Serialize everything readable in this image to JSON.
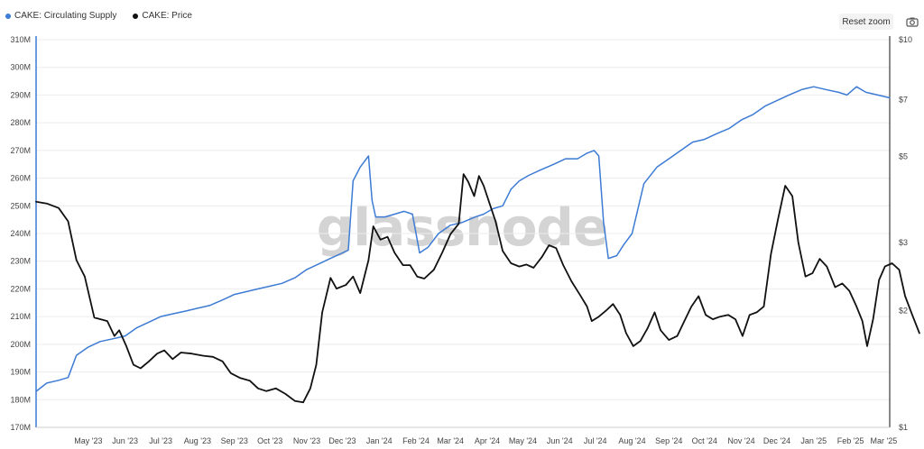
{
  "legend": [
    {
      "label": "CAKE: Circulating Supply",
      "color": "#3d7bd4"
    },
    {
      "label": "CAKE: Price",
      "color": "#111111"
    }
  ],
  "toolbar": {
    "reset_label": "Reset zoom",
    "camera_icon": "camera-icon"
  },
  "watermark": "glassnode",
  "chart_data": {
    "type": "line",
    "y_left": {
      "ticks": [
        "310M",
        "300M",
        "290M",
        "280M",
        "270M",
        "260M",
        "250M",
        "240M",
        "230M",
        "220M",
        "210M",
        "200M",
        "190M",
        "180M",
        "170M"
      ],
      "range": [
        170,
        310
      ],
      "unit": "M"
    },
    "y_right": {
      "ticks": [
        "$10",
        "$7",
        "$5",
        "$3",
        "$2",
        "$1"
      ],
      "scale": "log",
      "range": [
        1,
        10
      ]
    },
    "x_ticks": [
      "May '23",
      "Jun '23",
      "Jul '23",
      "Aug '23",
      "Sep '23",
      "Oct '23",
      "Nov '23",
      "Dec '23",
      "Jan '24",
      "Feb '24",
      "Mar '24",
      "Apr '24",
      "May '24",
      "Jun '24",
      "Jul '24",
      "Aug '24",
      "Sep '24",
      "Oct '24",
      "Nov '24",
      "Dec '24",
      "Jan '25",
      "Feb '25",
      "Mar '25"
    ],
    "x_range": [
      "2023-04-01",
      "2025-03-20"
    ],
    "grid": true,
    "legend_position": "top-left",
    "series": [
      {
        "name": "CAKE: Circulating Supply",
        "axis": "left",
        "color": "#3d7bd4",
        "points": [
          [
            "2023-04-01",
            183
          ],
          [
            "2023-04-10",
            186
          ],
          [
            "2023-04-20",
            187
          ],
          [
            "2023-04-28",
            188
          ],
          [
            "2023-05-05",
            196
          ],
          [
            "2023-05-15",
            199
          ],
          [
            "2023-05-25",
            201
          ],
          [
            "2023-06-05",
            202
          ],
          [
            "2023-06-15",
            203
          ],
          [
            "2023-06-25",
            206
          ],
          [
            "2023-07-05",
            208
          ],
          [
            "2023-07-15",
            210
          ],
          [
            "2023-07-25",
            211
          ],
          [
            "2023-08-05",
            212
          ],
          [
            "2023-08-15",
            213
          ],
          [
            "2023-08-25",
            214
          ],
          [
            "2023-09-05",
            216
          ],
          [
            "2023-09-15",
            218
          ],
          [
            "2023-09-25",
            219
          ],
          [
            "2023-10-05",
            220
          ],
          [
            "2023-10-15",
            221
          ],
          [
            "2023-10-25",
            222
          ],
          [
            "2023-11-05",
            224
          ],
          [
            "2023-11-15",
            227
          ],
          [
            "2023-11-25",
            229
          ],
          [
            "2023-12-05",
            231
          ],
          [
            "2023-12-15",
            233
          ],
          [
            "2023-12-20",
            234
          ],
          [
            "2023-12-24",
            259
          ],
          [
            "2023-12-30",
            264
          ],
          [
            "2024-01-06",
            268
          ],
          [
            "2024-01-09",
            252
          ],
          [
            "2024-01-12",
            246
          ],
          [
            "2024-01-20",
            246
          ],
          [
            "2024-01-28",
            247
          ],
          [
            "2024-02-05",
            248
          ],
          [
            "2024-02-12",
            247
          ],
          [
            "2024-02-18",
            233
          ],
          [
            "2024-02-25",
            235
          ],
          [
            "2024-03-05",
            240
          ],
          [
            "2024-03-15",
            243
          ],
          [
            "2024-03-25",
            244
          ],
          [
            "2024-04-05",
            246
          ],
          [
            "2024-04-12",
            247
          ],
          [
            "2024-04-20",
            249
          ],
          [
            "2024-04-28",
            250
          ],
          [
            "2024-05-05",
            256
          ],
          [
            "2024-05-12",
            259
          ],
          [
            "2024-05-20",
            261
          ],
          [
            "2024-05-30",
            263
          ],
          [
            "2024-06-10",
            265
          ],
          [
            "2024-06-20",
            267
          ],
          [
            "2024-06-30",
            267
          ],
          [
            "2024-07-08",
            269
          ],
          [
            "2024-07-14",
            270
          ],
          [
            "2024-07-18",
            268
          ],
          [
            "2024-07-22",
            244
          ],
          [
            "2024-07-26",
            231
          ],
          [
            "2024-08-02",
            232
          ],
          [
            "2024-08-08",
            236
          ],
          [
            "2024-08-15",
            240
          ],
          [
            "2024-08-25",
            258
          ],
          [
            "2024-09-05",
            264
          ],
          [
            "2024-09-15",
            267
          ],
          [
            "2024-09-25",
            270
          ],
          [
            "2024-10-05",
            273
          ],
          [
            "2024-10-15",
            274
          ],
          [
            "2024-10-25",
            276
          ],
          [
            "2024-11-05",
            278
          ],
          [
            "2024-11-15",
            281
          ],
          [
            "2024-11-25",
            283
          ],
          [
            "2024-12-05",
            286
          ],
          [
            "2024-12-15",
            288
          ],
          [
            "2024-12-25",
            290
          ],
          [
            "2025-01-05",
            292
          ],
          [
            "2025-01-15",
            293
          ],
          [
            "2025-01-25",
            292
          ],
          [
            "2025-02-05",
            291
          ],
          [
            "2025-02-12",
            290
          ],
          [
            "2025-02-20",
            293
          ],
          [
            "2025-02-28",
            291
          ],
          [
            "2025-03-10",
            290
          ],
          [
            "2025-03-20",
            289
          ]
        ]
      },
      {
        "name": "CAKE: Price",
        "axis": "right",
        "color": "#111111",
        "points": [
          [
            "2023-04-01",
            3.82
          ],
          [
            "2023-04-10",
            3.78
          ],
          [
            "2023-04-20",
            3.68
          ],
          [
            "2023-04-28",
            3.4
          ],
          [
            "2023-05-05",
            2.7
          ],
          [
            "2023-05-12",
            2.45
          ],
          [
            "2023-05-20",
            1.92
          ],
          [
            "2023-05-31",
            1.88
          ],
          [
            "2023-06-06",
            1.72
          ],
          [
            "2023-06-10",
            1.78
          ],
          [
            "2023-06-16",
            1.62
          ],
          [
            "2023-06-22",
            1.45
          ],
          [
            "2023-06-28",
            1.42
          ],
          [
            "2023-07-05",
            1.48
          ],
          [
            "2023-07-12",
            1.55
          ],
          [
            "2023-07-18",
            1.58
          ],
          [
            "2023-07-25",
            1.5
          ],
          [
            "2023-08-01",
            1.56
          ],
          [
            "2023-08-10",
            1.55
          ],
          [
            "2023-08-20",
            1.53
          ],
          [
            "2023-08-28",
            1.52
          ],
          [
            "2023-09-05",
            1.48
          ],
          [
            "2023-09-12",
            1.38
          ],
          [
            "2023-09-20",
            1.34
          ],
          [
            "2023-09-28",
            1.32
          ],
          [
            "2023-10-05",
            1.26
          ],
          [
            "2023-10-12",
            1.24
          ],
          [
            "2023-10-20",
            1.26
          ],
          [
            "2023-10-28",
            1.22
          ],
          [
            "2023-11-05",
            1.17
          ],
          [
            "2023-11-12",
            1.16
          ],
          [
            "2023-11-18",
            1.26
          ],
          [
            "2023-11-23",
            1.45
          ],
          [
            "2023-11-28",
            1.98
          ],
          [
            "2023-12-05",
            2.43
          ],
          [
            "2023-12-10",
            2.28
          ],
          [
            "2023-12-18",
            2.33
          ],
          [
            "2023-12-24",
            2.45
          ],
          [
            "2023-12-30",
            2.22
          ],
          [
            "2024-01-06",
            2.7
          ],
          [
            "2024-01-10",
            3.3
          ],
          [
            "2024-01-16",
            3.05
          ],
          [
            "2024-01-22",
            3.1
          ],
          [
            "2024-01-28",
            2.82
          ],
          [
            "2024-02-04",
            2.62
          ],
          [
            "2024-02-10",
            2.62
          ],
          [
            "2024-02-16",
            2.45
          ],
          [
            "2024-02-22",
            2.42
          ],
          [
            "2024-03-01",
            2.55
          ],
          [
            "2024-03-08",
            2.82
          ],
          [
            "2024-03-15",
            3.15
          ],
          [
            "2024-03-22",
            3.35
          ],
          [
            "2024-03-26",
            4.5
          ],
          [
            "2024-03-30",
            4.3
          ],
          [
            "2024-04-04",
            3.95
          ],
          [
            "2024-04-08",
            4.45
          ],
          [
            "2024-04-12",
            4.2
          ],
          [
            "2024-04-18",
            3.7
          ],
          [
            "2024-04-22",
            3.4
          ],
          [
            "2024-04-28",
            2.85
          ],
          [
            "2024-05-05",
            2.65
          ],
          [
            "2024-05-12",
            2.6
          ],
          [
            "2024-05-18",
            2.63
          ],
          [
            "2024-05-24",
            2.58
          ],
          [
            "2024-05-31",
            2.75
          ],
          [
            "2024-06-06",
            2.95
          ],
          [
            "2024-06-12",
            2.9
          ],
          [
            "2024-06-18",
            2.62
          ],
          [
            "2024-06-25",
            2.38
          ],
          [
            "2024-07-02",
            2.2
          ],
          [
            "2024-07-08",
            2.05
          ],
          [
            "2024-07-12",
            1.88
          ],
          [
            "2024-07-18",
            1.93
          ],
          [
            "2024-07-24",
            2.0
          ],
          [
            "2024-07-30",
            2.08
          ],
          [
            "2024-08-05",
            1.95
          ],
          [
            "2024-08-10",
            1.75
          ],
          [
            "2024-08-16",
            1.62
          ],
          [
            "2024-08-22",
            1.67
          ],
          [
            "2024-08-28",
            1.8
          ],
          [
            "2024-09-03",
            1.98
          ],
          [
            "2024-09-08",
            1.78
          ],
          [
            "2024-09-15",
            1.68
          ],
          [
            "2024-09-22",
            1.72
          ],
          [
            "2024-09-28",
            1.88
          ],
          [
            "2024-10-04",
            2.05
          ],
          [
            "2024-10-10",
            2.18
          ],
          [
            "2024-10-16",
            1.95
          ],
          [
            "2024-10-22",
            1.9
          ],
          [
            "2024-10-28",
            1.93
          ],
          [
            "2024-11-04",
            1.95
          ],
          [
            "2024-11-10",
            1.9
          ],
          [
            "2024-11-16",
            1.72
          ],
          [
            "2024-11-22",
            1.95
          ],
          [
            "2024-11-28",
            1.98
          ],
          [
            "2024-12-04",
            2.05
          ],
          [
            "2024-12-10",
            2.8
          ],
          [
            "2024-12-16",
            3.45
          ],
          [
            "2024-12-22",
            4.2
          ],
          [
            "2024-12-28",
            3.95
          ],
          [
            "2025-01-02",
            3.0
          ],
          [
            "2025-01-08",
            2.45
          ],
          [
            "2025-01-14",
            2.5
          ],
          [
            "2025-01-20",
            2.72
          ],
          [
            "2025-01-26",
            2.6
          ],
          [
            "2025-02-02",
            2.3
          ],
          [
            "2025-02-08",
            2.35
          ],
          [
            "2025-02-14",
            2.25
          ],
          [
            "2025-02-20",
            2.05
          ],
          [
            "2025-02-25",
            1.88
          ],
          [
            "2025-03-01",
            1.62
          ],
          [
            "2025-03-06",
            1.9
          ],
          [
            "2025-03-11",
            2.4
          ],
          [
            "2025-03-16",
            2.6
          ],
          [
            "2025-03-22",
            2.65
          ],
          [
            "2025-03-28",
            2.55
          ],
          [
            "2025-04-02",
            2.18
          ],
          [
            "2025-04-08",
            1.95
          ],
          [
            "2025-04-14",
            1.75
          ]
        ]
      }
    ]
  }
}
